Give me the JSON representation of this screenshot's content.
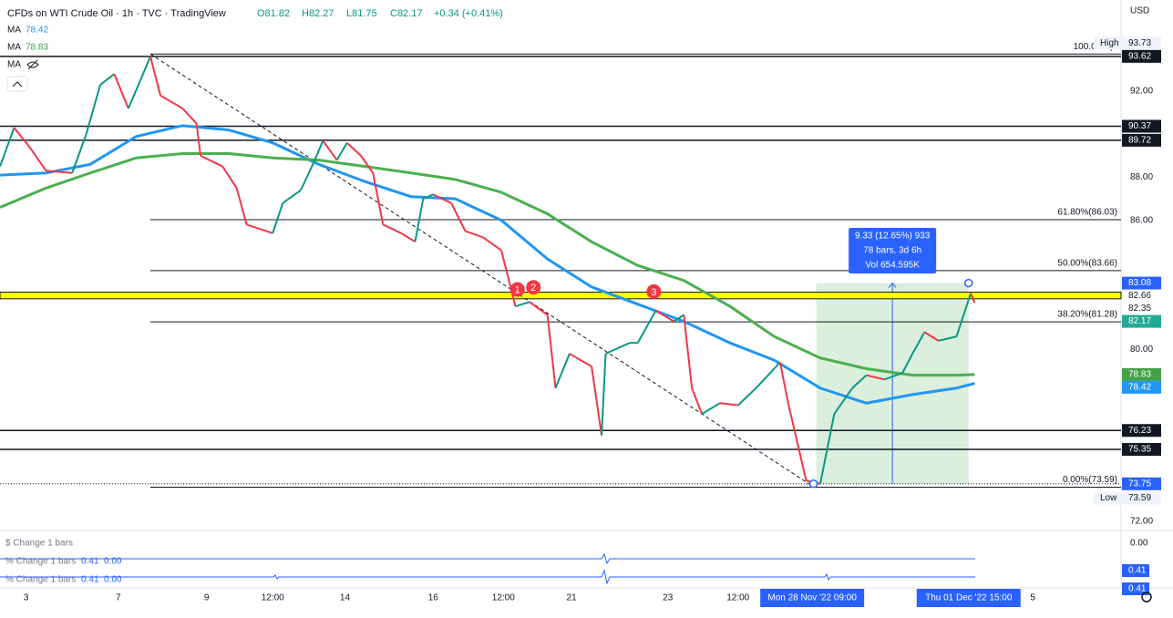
{
  "header": {
    "title": "CFDs on WTI Crude Oil · 1h · TVC · TradingView",
    "ohlc": [
      "O81.82",
      "H82.27",
      "L81.75",
      "C82.17"
    ],
    "change": "+0.34 (+0.41%)",
    "currency": "USD"
  },
  "indicators": [
    {
      "name": "MA",
      "value": "78.42",
      "color": "#2196f3"
    },
    {
      "name": "MA",
      "value": "78.83",
      "color": "#43a047"
    },
    {
      "name": "MA"
    }
  ],
  "chart": {
    "xlim": [
      0,
      559
    ],
    "ylim": [
      71.58,
      96.24
    ],
    "yticks": [
      {
        "value": 92,
        "label": "92.00"
      },
      {
        "value": 88,
        "label": "88.00"
      },
      {
        "value": 86,
        "label": "86.00"
      },
      {
        "value": 80,
        "label": "80.00"
      },
      {
        "value": 72,
        "label": "72.00"
      }
    ],
    "xticks": [
      {
        "value": 13,
        "label": "3"
      },
      {
        "value": 59,
        "label": "7"
      },
      {
        "value": 103,
        "label": "9"
      },
      {
        "value": 136,
        "label": "12:00"
      },
      {
        "value": 172,
        "label": "14"
      },
      {
        "value": 216,
        "label": "16"
      },
      {
        "value": 251,
        "label": "12:00"
      },
      {
        "value": 285,
        "label": "21"
      },
      {
        "value": 333,
        "label": "23"
      },
      {
        "value": 368,
        "label": "12:00"
      },
      {
        "value": 515,
        "label": "5"
      }
    ],
    "highlight_xticks": [
      {
        "value": 405,
        "label": "Mon 28 Nov '22  09:00"
      },
      {
        "value": 483,
        "label": "Thu 01 Dec '22  15:00"
      }
    ],
    "price": {
      "x": [
        0,
        7,
        14,
        23,
        36,
        43,
        50,
        57,
        64,
        70,
        75,
        80,
        91,
        98,
        100,
        111,
        118,
        123,
        136,
        141,
        150,
        157,
        161,
        168,
        173,
        180,
        186,
        191,
        200,
        207,
        211,
        216,
        225,
        232,
        241,
        250,
        257,
        264,
        273,
        277,
        284,
        295,
        300,
        302,
        314,
        318,
        327,
        336,
        341,
        345,
        350,
        359,
        368,
        377,
        389,
        393,
        398,
        402,
        409,
        416,
        425,
        432,
        441,
        450,
        455,
        461,
        468,
        477,
        484,
        486
      ],
      "values": [
        88.5,
        90.3,
        89.5,
        88.3,
        88.2,
        90.0,
        92.3,
        92.8,
        91.2,
        92.5,
        93.62,
        91.8,
        91.2,
        90.5,
        89.0,
        88.5,
        87.5,
        85.8,
        85.4,
        86.8,
        87.4,
        88.8,
        89.7,
        88.8,
        89.6,
        89.0,
        88.2,
        85.8,
        85.4,
        85.0,
        87.0,
        87.2,
        86.8,
        85.5,
        85.2,
        84.6,
        82.0,
        82.2,
        81.6,
        78.2,
        79.8,
        79.2,
        76.0,
        79.8,
        80.3,
        80.3,
        81.8,
        81.3,
        81.6,
        78.2,
        77.0,
        77.5,
        77.4,
        78.2,
        79.4,
        77.5,
        75.5,
        73.9,
        73.75,
        77.0,
        78.2,
        78.8,
        78.6,
        78.9,
        79.8,
        80.8,
        80.4,
        80.6,
        82.6,
        82.17
      ]
    },
    "ma": [
      {
        "color": "#2196f3",
        "x": [
          0,
          23,
          45,
          68,
          91,
          114,
          136,
          159,
          182,
          205,
          227,
          250,
          273,
          295,
          318,
          341,
          364,
          386,
          409,
          432,
          455,
          477,
          486
        ],
        "values": [
          88.1,
          88.2,
          88.6,
          89.9,
          90.4,
          90.2,
          89.6,
          88.6,
          87.8,
          87.1,
          87.0,
          86.0,
          84.2,
          82.9,
          82.1,
          81.3,
          80.3,
          79.5,
          78.2,
          77.5,
          77.9,
          78.2,
          78.42
        ]
      },
      {
        "color": "#4caf50",
        "x": [
          0,
          23,
          45,
          68,
          91,
          114,
          136,
          159,
          182,
          205,
          227,
          250,
          273,
          295,
          318,
          341,
          364,
          386,
          409,
          432,
          455,
          477,
          486
        ],
        "values": [
          86.6,
          87.5,
          88.2,
          88.9,
          89.1,
          89.1,
          88.9,
          88.8,
          88.5,
          88.2,
          87.9,
          87.3,
          86.3,
          85.0,
          83.9,
          83.2,
          82.0,
          80.6,
          79.6,
          79.1,
          78.8,
          78.8,
          78.83
        ]
      }
    ],
    "levels": [
      93.62,
      90.37,
      89.72,
      76.23,
      75.35
    ],
    "dotted_level": 73.75,
    "zone": [
      82.35,
      82.66
    ],
    "fib": {
      "x0": 75,
      "levels": [
        {
          "value": 93.73,
          "label": "100.00%(9"
        },
        {
          "value": 86.03,
          "label": "61.80%(86.03)"
        },
        {
          "value": 83.66,
          "label": "50.00%(83.66)"
        },
        {
          "value": 81.28,
          "label": "38.20%(81.28)"
        },
        {
          "value": 73.59,
          "label": "0.00%(73.59)"
        }
      ]
    },
    "trend": {
      "x": [
        75,
        406
      ],
      "values": [
        93.73,
        73.59
      ]
    },
    "measure": {
      "x": [
        407,
        483
      ],
      "values": [
        73.75,
        83.08
      ],
      "lines": [
        "9.33 (12.65%) 933",
        "78 bars, 3d 6h",
        "Vol 654.595K"
      ]
    },
    "markers": [
      {
        "label": "1",
        "x": 258,
        "value": 82.7
      },
      {
        "label": "2",
        "x": 266,
        "value": 82.8
      },
      {
        "label": "3",
        "x": 326,
        "value": 82.6
      }
    ],
    "price_tags": [
      {
        "value": 93.73,
        "label": "93.73",
        "note": "High",
        "style": "note"
      },
      {
        "value": 93.62,
        "label": "93.62",
        "style": "dark"
      },
      {
        "value": 90.37,
        "label": "90.37",
        "style": "dark"
      },
      {
        "value": 89.72,
        "label": "89.72",
        "style": "dark"
      },
      {
        "value": 83.08,
        "label": "83.08",
        "style": "blue"
      },
      {
        "value": 82.66,
        "label": "82.66",
        "style": "plain"
      },
      {
        "value": 82.35,
        "label": "82.35",
        "style": "plain"
      },
      {
        "value": 82.17,
        "label": "82.17",
        "style": "green"
      },
      {
        "value": 78.83,
        "label": "78.83",
        "style": "ma-green"
      },
      {
        "value": 78.42,
        "label": "78.42",
        "style": "ma-blue"
      },
      {
        "value": 76.23,
        "label": "76.23",
        "style": "dark"
      },
      {
        "value": 75.35,
        "label": "75.35",
        "style": "dark"
      },
      {
        "value": 73.75,
        "label": "73.75",
        "style": "blue"
      },
      {
        "value": 73.59,
        "label": "73.59",
        "note": "Low",
        "style": "note"
      }
    ]
  },
  "panes": [
    {
      "title": "$ Change 1 bars",
      "axis": "0.00"
    },
    {
      "title": "% Change 1 bars",
      "values": [
        "0.41",
        "0.00"
      ],
      "tag": "0.41"
    },
    {
      "title": "% Change 1 bars",
      "values": [
        "0.41",
        "0.00"
      ],
      "tag": "0.41"
    }
  ]
}
